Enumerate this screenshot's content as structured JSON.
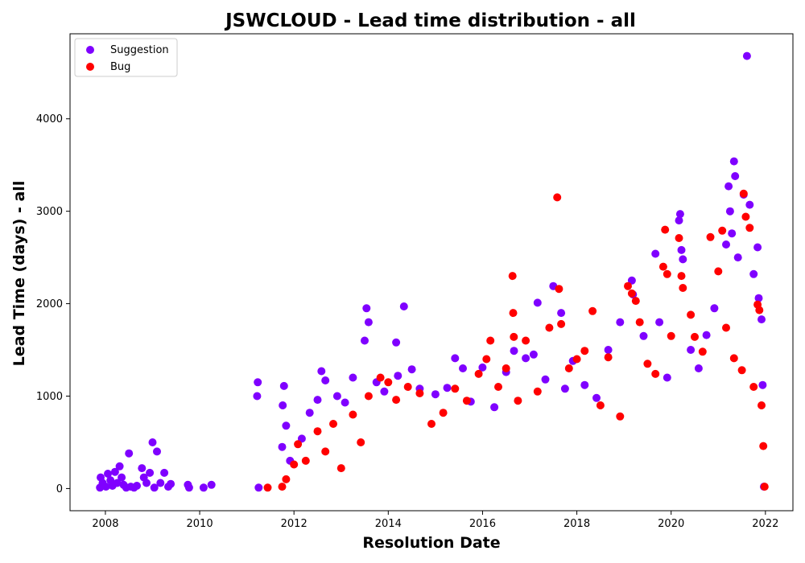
{
  "chart_data": {
    "type": "scatter",
    "title": "JSWCLOUD - Lead time distribution - all",
    "xlabel": "Resolution Date",
    "ylabel": "Lead Time (days) - all",
    "xlim": [
      "2007-04-01",
      "2022-08-01"
    ],
    "ylim": [
      -240,
      4920
    ],
    "x_ticks": [
      "2008",
      "2010",
      "2012",
      "2014",
      "2016",
      "2018",
      "2020",
      "2022"
    ],
    "y_ticks": [
      0,
      1000,
      2000,
      3000,
      4000
    ],
    "grid": false,
    "legend_position": "top-left",
    "series": [
      {
        "name": "Suggestion",
        "color": "#7f00ff",
        "points": [
          [
            "2007-11-20",
            10
          ],
          [
            "2007-11-25",
            120
          ],
          [
            "2007-12-10",
            60
          ],
          [
            "2008-01-05",
            20
          ],
          [
            "2008-01-20",
            160
          ],
          [
            "2008-02-10",
            90
          ],
          [
            "2008-02-25",
            30
          ],
          [
            "2008-03-15",
            180
          ],
          [
            "2008-04-01",
            60
          ],
          [
            "2008-04-20",
            240
          ],
          [
            "2008-05-05",
            120
          ],
          [
            "2008-05-20",
            40
          ],
          [
            "2008-06-10",
            10
          ],
          [
            "2008-07-01",
            380
          ],
          [
            "2008-07-15",
            20
          ],
          [
            "2008-08-10",
            10
          ],
          [
            "2008-09-01",
            30
          ],
          [
            "2008-10-10",
            220
          ],
          [
            "2008-10-25",
            120
          ],
          [
            "2008-11-15",
            60
          ],
          [
            "2008-12-10",
            170
          ],
          [
            "2009-01-01",
            500
          ],
          [
            "2009-01-15",
            10
          ],
          [
            "2009-02-05",
            400
          ],
          [
            "2009-03-01",
            60
          ],
          [
            "2009-04-01",
            170
          ],
          [
            "2009-05-01",
            20
          ],
          [
            "2009-05-20",
            50
          ],
          [
            "2009-10-01",
            40
          ],
          [
            "2009-10-10",
            10
          ],
          [
            "2010-02-01",
            10
          ],
          [
            "2010-04-01",
            40
          ],
          [
            "2011-03-20",
            1000
          ],
          [
            "2011-03-25",
            1150
          ],
          [
            "2011-04-01",
            10
          ],
          [
            "2011-10-01",
            450
          ],
          [
            "2011-10-05",
            900
          ],
          [
            "2011-10-15",
            1110
          ],
          [
            "2011-11-01",
            680
          ],
          [
            "2011-12-01",
            300
          ],
          [
            "2012-03-01",
            540
          ],
          [
            "2012-05-01",
            820
          ],
          [
            "2012-07-01",
            960
          ],
          [
            "2012-08-01",
            1270
          ],
          [
            "2012-09-01",
            1170
          ],
          [
            "2012-12-01",
            1000
          ],
          [
            "2013-02-01",
            930
          ],
          [
            "2013-04-01",
            1200
          ],
          [
            "2013-07-01",
            1600
          ],
          [
            "2013-07-15",
            1950
          ],
          [
            "2013-08-01",
            1800
          ],
          [
            "2013-10-01",
            1150
          ],
          [
            "2013-12-01",
            1050
          ],
          [
            "2014-03-01",
            1580
          ],
          [
            "2014-03-15",
            1220
          ],
          [
            "2014-05-01",
            1970
          ],
          [
            "2014-07-01",
            1290
          ],
          [
            "2014-09-01",
            1080
          ],
          [
            "2015-01-01",
            1020
          ],
          [
            "2015-04-01",
            1090
          ],
          [
            "2015-06-01",
            1410
          ],
          [
            "2015-08-01",
            1300
          ],
          [
            "2015-10-01",
            940
          ],
          [
            "2016-01-01",
            1310
          ],
          [
            "2016-04-01",
            880
          ],
          [
            "2016-07-01",
            1260
          ],
          [
            "2016-09-01",
            1490
          ],
          [
            "2016-12-01",
            1410
          ],
          [
            "2017-02-01",
            1450
          ],
          [
            "2017-03-01",
            2010
          ],
          [
            "2017-05-01",
            1180
          ],
          [
            "2017-07-01",
            2190
          ],
          [
            "2017-09-01",
            1900
          ],
          [
            "2017-10-01",
            1080
          ],
          [
            "2017-12-01",
            1380
          ],
          [
            "2018-03-01",
            1120
          ],
          [
            "2018-06-01",
            980
          ],
          [
            "2018-09-01",
            1500
          ],
          [
            "2018-12-01",
            1800
          ],
          [
            "2019-03-01",
            2250
          ],
          [
            "2019-03-10",
            2100
          ],
          [
            "2019-06-01",
            1650
          ],
          [
            "2019-09-01",
            2540
          ],
          [
            "2019-10-01",
            1800
          ],
          [
            "2019-12-01",
            1200
          ],
          [
            "2020-03-01",
            2900
          ],
          [
            "2020-03-10",
            2970
          ],
          [
            "2020-03-20",
            2580
          ],
          [
            "2020-04-01",
            2480
          ],
          [
            "2020-06-01",
            1500
          ],
          [
            "2020-08-01",
            1300
          ],
          [
            "2020-10-01",
            1660
          ],
          [
            "2020-12-01",
            1950
          ],
          [
            "2021-03-01",
            2640
          ],
          [
            "2021-03-20",
            3270
          ],
          [
            "2021-04-01",
            3000
          ],
          [
            "2021-04-15",
            2760
          ],
          [
            "2021-05-01",
            3540
          ],
          [
            "2021-05-10",
            3380
          ],
          [
            "2021-06-01",
            2500
          ],
          [
            "2021-07-15",
            3180
          ],
          [
            "2021-08-10",
            4680
          ],
          [
            "2021-09-01",
            3070
          ],
          [
            "2021-10-01",
            2320
          ],
          [
            "2021-11-01",
            2610
          ],
          [
            "2021-11-10",
            2060
          ],
          [
            "2021-12-01",
            1830
          ],
          [
            "2021-12-10",
            1120
          ],
          [
            "2021-12-20",
            20
          ]
        ]
      },
      {
        "name": "Bug",
        "color": "#ff0000",
        "points": [
          [
            "2011-06-10",
            10
          ],
          [
            "2011-10-01",
            20
          ],
          [
            "2011-11-01",
            100
          ],
          [
            "2012-01-01",
            260
          ],
          [
            "2012-02-01",
            480
          ],
          [
            "2012-04-01",
            300
          ],
          [
            "2012-07-01",
            620
          ],
          [
            "2012-09-01",
            400
          ],
          [
            "2012-11-01",
            700
          ],
          [
            "2013-01-01",
            220
          ],
          [
            "2013-04-01",
            800
          ],
          [
            "2013-06-01",
            500
          ],
          [
            "2013-08-01",
            1000
          ],
          [
            "2013-11-01",
            1200
          ],
          [
            "2014-01-01",
            1150
          ],
          [
            "2014-03-01",
            960
          ],
          [
            "2014-06-01",
            1100
          ],
          [
            "2014-09-01",
            1030
          ],
          [
            "2014-12-01",
            700
          ],
          [
            "2015-03-01",
            820
          ],
          [
            "2015-06-01",
            1080
          ],
          [
            "2015-09-01",
            950
          ],
          [
            "2015-12-01",
            1240
          ],
          [
            "2016-02-01",
            1400
          ],
          [
            "2016-03-01",
            1600
          ],
          [
            "2016-05-01",
            1100
          ],
          [
            "2016-07-01",
            1300
          ],
          [
            "2016-08-20",
            2300
          ],
          [
            "2016-08-25",
            1900
          ],
          [
            "2016-08-30",
            1640
          ],
          [
            "2016-10-01",
            950
          ],
          [
            "2016-12-01",
            1600
          ],
          [
            "2017-03-01",
            1050
          ],
          [
            "2017-06-01",
            1740
          ],
          [
            "2017-08-01",
            3150
          ],
          [
            "2017-08-15",
            2160
          ],
          [
            "2017-09-01",
            1780
          ],
          [
            "2017-11-01",
            1300
          ],
          [
            "2018-01-01",
            1400
          ],
          [
            "2018-03-01",
            1490
          ],
          [
            "2018-05-01",
            1920
          ],
          [
            "2018-07-01",
            900
          ],
          [
            "2018-09-01",
            1420
          ],
          [
            "2018-12-01",
            780
          ],
          [
            "2019-02-01",
            2190
          ],
          [
            "2019-03-01",
            2110
          ],
          [
            "2019-04-01",
            2030
          ],
          [
            "2019-05-01",
            1800
          ],
          [
            "2019-07-01",
            1350
          ],
          [
            "2019-09-01",
            1240
          ],
          [
            "2019-11-01",
            2400
          ],
          [
            "2019-11-15",
            2800
          ],
          [
            "2019-12-01",
            2320
          ],
          [
            "2020-01-01",
            1650
          ],
          [
            "2020-03-01",
            2710
          ],
          [
            "2020-03-20",
            2300
          ],
          [
            "2020-04-01",
            2170
          ],
          [
            "2020-06-01",
            1880
          ],
          [
            "2020-07-01",
            1640
          ],
          [
            "2020-09-01",
            1480
          ],
          [
            "2020-11-01",
            2720
          ],
          [
            "2021-01-01",
            2350
          ],
          [
            "2021-02-01",
            2790
          ],
          [
            "2021-03-01",
            1740
          ],
          [
            "2021-05-01",
            1410
          ],
          [
            "2021-07-01",
            1280
          ],
          [
            "2021-07-15",
            3190
          ],
          [
            "2021-08-01",
            2940
          ],
          [
            "2021-09-01",
            2820
          ],
          [
            "2021-10-01",
            1100
          ],
          [
            "2021-11-01",
            1990
          ],
          [
            "2021-11-15",
            1930
          ],
          [
            "2021-12-01",
            900
          ],
          [
            "2021-12-15",
            460
          ],
          [
            "2021-12-25",
            20
          ]
        ]
      }
    ]
  }
}
